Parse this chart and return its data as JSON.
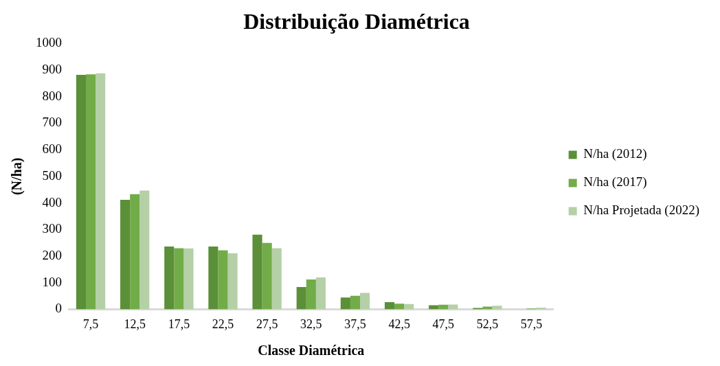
{
  "chart_data": {
    "type": "bar",
    "title": "Distribuição Diamétrica",
    "xlabel": "Classe Diamétrica",
    "ylabel": "(N/ha)",
    "categories": [
      "7,5",
      "12,5",
      "17,5",
      "22,5",
      "27,5",
      "32,5",
      "37,5",
      "42,5",
      "47,5",
      "52,5",
      "57,5"
    ],
    "series": [
      {
        "name": "N/ha (2012)",
        "color": "#5b8f38",
        "values": [
          882,
          412,
          236,
          236,
          281,
          84,
          44,
          27,
          15,
          5,
          0
        ]
      },
      {
        "name": "N/ha (2017)",
        "color": "#72ac48",
        "values": [
          884,
          433,
          230,
          222,
          250,
          112,
          51,
          21,
          17,
          10,
          3
        ]
      },
      {
        "name": "N/ha Projetada (2022)",
        "color": "#b5d0a7",
        "values": [
          888,
          447,
          229,
          211,
          230,
          120,
          62,
          20,
          18,
          13,
          6
        ]
      }
    ],
    "ylim": [
      0,
      1000
    ],
    "yticks": [
      0,
      100,
      200,
      300,
      400,
      500,
      600,
      700,
      800,
      900,
      1000
    ],
    "grid": false,
    "legend": "right"
  }
}
